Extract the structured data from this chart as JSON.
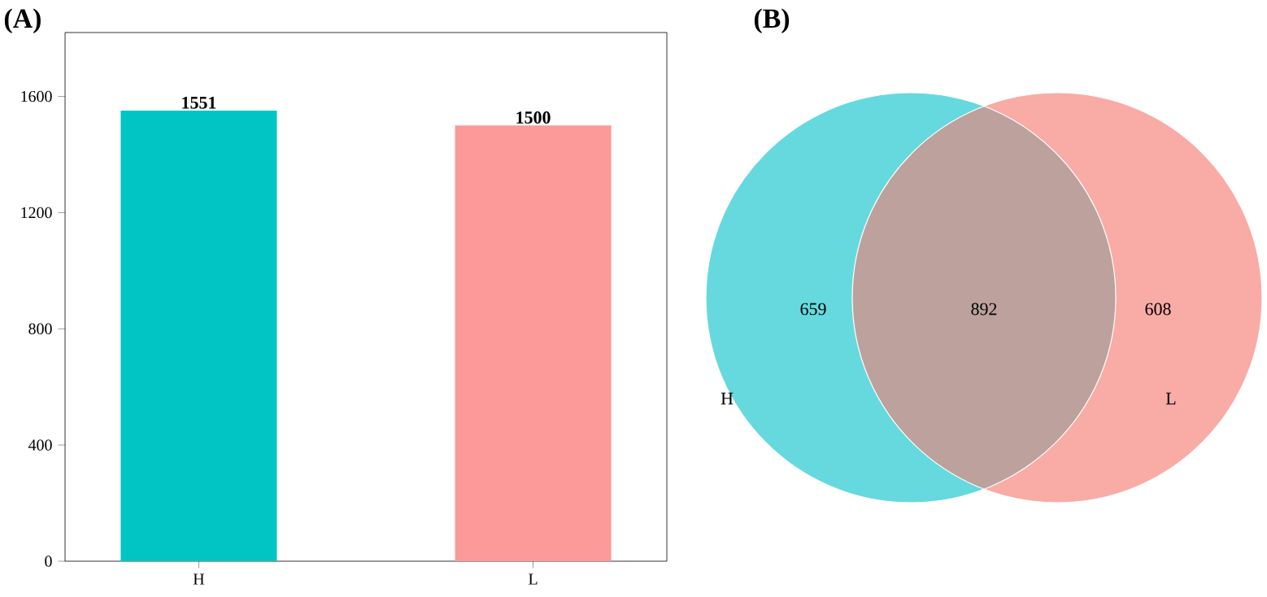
{
  "chart_data": [
    {
      "type": "bar",
      "title": "(A)",
      "categories": [
        "H",
        "L"
      ],
      "values": [
        1551,
        1500
      ],
      "colors": [
        "#00c5c5",
        "#fc9999"
      ],
      "data_labels": true,
      "ylim": [
        0,
        1820
      ],
      "yticks": [
        0,
        400,
        800,
        1200,
        1600
      ],
      "grid": false
    },
    {
      "type": "other",
      "title": "(B)",
      "categories": [
        "H",
        null,
        "L"
      ],
      "values": [
        659,
        892,
        608
      ],
      "value_labels": [
        "659",
        "892",
        "608"
      ],
      "colors": [
        "#66d9de",
        "#bca19c",
        "#f9aba6"
      ]
    }
  ]
}
